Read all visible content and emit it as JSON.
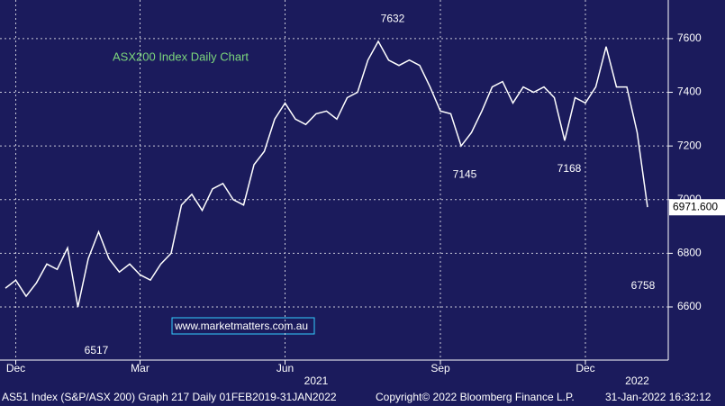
{
  "chart_data": {
    "type": "line",
    "title": "ASX200 Index Daily Chart",
    "categories": [
      null,
      "Dec",
      null,
      null,
      null,
      null,
      null,
      null,
      null,
      null,
      null,
      null,
      null,
      "Mar",
      null,
      null,
      null,
      null,
      null,
      null,
      null,
      null,
      null,
      null,
      null,
      null,
      null,
      "Jun",
      null,
      null,
      null,
      null,
      null,
      null,
      null,
      null,
      null,
      null,
      null,
      null,
      null,
      null,
      "Sep",
      null,
      null,
      null,
      null,
      null,
      null,
      null,
      null,
      null,
      null,
      null,
      null,
      null,
      "Dec",
      null,
      null,
      null,
      null,
      null,
      null
    ],
    "year_categories": [
      null,
      null,
      null,
      null,
      null,
      null,
      null,
      null,
      null,
      null,
      null,
      null,
      null,
      null,
      null,
      null,
      null,
      null,
      null,
      null,
      null,
      null,
      null,
      null,
      null,
      null,
      null,
      null,
      null,
      null,
      "2021",
      null,
      null,
      null,
      null,
      null,
      null,
      null,
      null,
      null,
      null,
      null,
      null,
      null,
      null,
      null,
      null,
      null,
      null,
      null,
      null,
      null,
      null,
      null,
      null,
      null,
      null,
      null,
      null,
      null,
      null,
      "2022",
      null
    ],
    "series": [
      {
        "name": "AS51 Index",
        "color": "#ffffff",
        "values": [
          6670,
          6700,
          6640,
          6690,
          6760,
          6740,
          6820,
          6600,
          6780,
          6880,
          6780,
          6730,
          6760,
          6720,
          6700,
          6760,
          6800,
          6980,
          7020,
          6960,
          7040,
          7060,
          7000,
          6980,
          7130,
          7180,
          7300,
          7360,
          7300,
          7280,
          7320,
          7330,
          7300,
          7380,
          7400,
          7520,
          7590,
          7520,
          7500,
          7520,
          7500,
          7420,
          7330,
          7320,
          7200,
          7250,
          7330,
          7420,
          7440,
          7360,
          7420,
          7400,
          7420,
          7380,
          7220,
          7380,
          7360,
          7420,
          7570,
          7420,
          7420,
          7250,
          6972
        ]
      }
    ],
    "ylim": [
      6402,
      7744
    ],
    "yticks": [
      6600,
      6800,
      7000,
      7200,
      7400,
      7600
    ],
    "grid": true,
    "annotations": [
      {
        "value": 7632,
        "label": "7632"
      },
      {
        "value": 7145,
        "label": "7145"
      },
      {
        "value": 7168,
        "label": "7168"
      },
      {
        "value": 6758,
        "label": "6758"
      },
      {
        "value": 6517,
        "label": "6517"
      }
    ],
    "last_value": {
      "value": 6971.6,
      "label": "6971.600"
    },
    "source": "www.marketmatters.com.au",
    "footer": [
      "AS51 Index (S&P/ASX 200) Graph 217  Daily 01FEB2019-31JAN2022",
      "Copyright© 2022 Bloomberg Finance L.P.",
      "31-Jan-2022 16:32:12"
    ]
  }
}
